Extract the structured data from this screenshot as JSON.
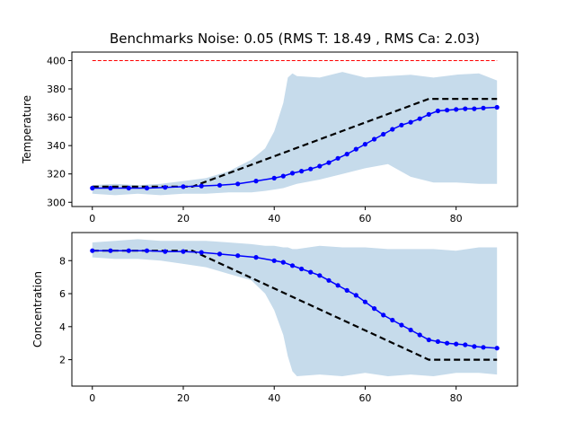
{
  "chart_data": [
    {
      "type": "line",
      "title": "Benchmarks Noise: 0.05 (RMS T: 18.49 , RMS Ca: 2.03)",
      "xlabel": "",
      "ylabel": "Temperature",
      "xlim": [
        -4.5,
        93.5
      ],
      "ylim": [
        297,
        406
      ],
      "xticks": [
        0,
        20,
        40,
        60,
        80
      ],
      "yticks": [
        300,
        320,
        340,
        360,
        380,
        400
      ],
      "grid": false,
      "limit_line": {
        "y": 400,
        "x_start": 0,
        "x_end": 89,
        "color": "#ff0000",
        "style": "dashed"
      },
      "setpoint": {
        "x": [
          0,
          22,
          74,
          89
        ],
        "y": [
          311,
          311,
          373,
          373
        ],
        "color": "#000000",
        "style": "dashed"
      },
      "band": {
        "x": [
          0,
          5,
          10,
          15,
          20,
          25,
          30,
          35,
          38,
          40,
          42,
          43,
          44,
          45,
          50,
          55,
          60,
          65,
          70,
          75,
          80,
          85,
          89
        ],
        "upper": [
          312,
          313,
          312,
          313,
          315,
          317,
          322,
          330,
          338,
          350,
          370,
          388,
          391,
          389,
          388,
          392,
          388,
          389,
          390,
          388,
          390,
          391,
          386
        ],
        "lower": [
          306,
          305,
          306,
          305,
          306,
          306,
          307,
          307,
          308,
          309,
          310,
          311,
          312,
          313,
          316,
          320,
          324,
          327,
          318,
          314,
          314,
          313,
          313
        ],
        "color": "#c6dbeb"
      },
      "series": [
        {
          "color": "#0000ff",
          "x": [
            0,
            4,
            8,
            12,
            16,
            20,
            24,
            28,
            32,
            36,
            40,
            42,
            44,
            46,
            48,
            50,
            52,
            54,
            56,
            58,
            60,
            62,
            64,
            66,
            68,
            70,
            72,
            74,
            76,
            78,
            80,
            82,
            84,
            86,
            89
          ],
          "y": [
            310,
            310,
            310,
            310,
            310.5,
            311,
            311.5,
            312,
            313,
            315,
            317,
            318.5,
            320.5,
            322,
            323.5,
            325.5,
            328,
            331,
            334,
            337.5,
            341,
            344.5,
            348,
            351.5,
            354.5,
            356.5,
            359,
            362,
            364.5,
            365,
            365.5,
            366,
            366,
            366.5,
            367
          ]
        }
      ]
    },
    {
      "type": "line",
      "title": "",
      "xlabel": "",
      "ylabel": "Concentration",
      "xlim": [
        -4.5,
        93.5
      ],
      "ylim": [
        0.4,
        9.7
      ],
      "xticks": [
        0,
        20,
        40,
        60,
        80
      ],
      "yticks": [
        2,
        4,
        6,
        8
      ],
      "grid": false,
      "setpoint": {
        "x": [
          0,
          22,
          74,
          89
        ],
        "y": [
          8.6,
          8.6,
          2.0,
          2.0
        ],
        "color": "#000000",
        "style": "dashed"
      },
      "band": {
        "x": [
          0,
          5,
          10,
          15,
          20,
          25,
          30,
          35,
          38,
          40,
          42,
          43,
          44,
          45,
          50,
          55,
          60,
          65,
          70,
          75,
          80,
          85,
          89
        ],
        "upper": [
          9.1,
          9.2,
          9.3,
          9.2,
          9.2,
          9.2,
          9.1,
          9.0,
          8.9,
          8.9,
          8.8,
          8.8,
          8.7,
          8.7,
          8.9,
          8.8,
          8.8,
          8.7,
          8.7,
          8.7,
          8.6,
          8.8,
          8.8
        ],
        "lower": [
          8.2,
          8.1,
          8.1,
          8.0,
          7.8,
          7.6,
          7.2,
          6.8,
          6.0,
          5.0,
          3.5,
          2.2,
          1.3,
          1.0,
          1.1,
          1.0,
          1.2,
          1.0,
          1.1,
          1.0,
          1.2,
          1.2,
          1.1
        ],
        "color": "#c6dbeb"
      },
      "series": [
        {
          "color": "#0000ff",
          "x": [
            0,
            4,
            8,
            12,
            16,
            20,
            24,
            28,
            32,
            36,
            40,
            42,
            44,
            46,
            48,
            50,
            52,
            54,
            56,
            58,
            60,
            62,
            64,
            66,
            68,
            70,
            72,
            74,
            76,
            78,
            80,
            82,
            84,
            86,
            89
          ],
          "y": [
            8.6,
            8.6,
            8.6,
            8.6,
            8.55,
            8.55,
            8.5,
            8.4,
            8.3,
            8.2,
            8.0,
            7.9,
            7.7,
            7.5,
            7.3,
            7.1,
            6.8,
            6.5,
            6.2,
            5.9,
            5.5,
            5.1,
            4.7,
            4.4,
            4.1,
            3.8,
            3.5,
            3.2,
            3.1,
            3.0,
            2.95,
            2.9,
            2.8,
            2.75,
            2.7
          ]
        }
      ]
    }
  ]
}
